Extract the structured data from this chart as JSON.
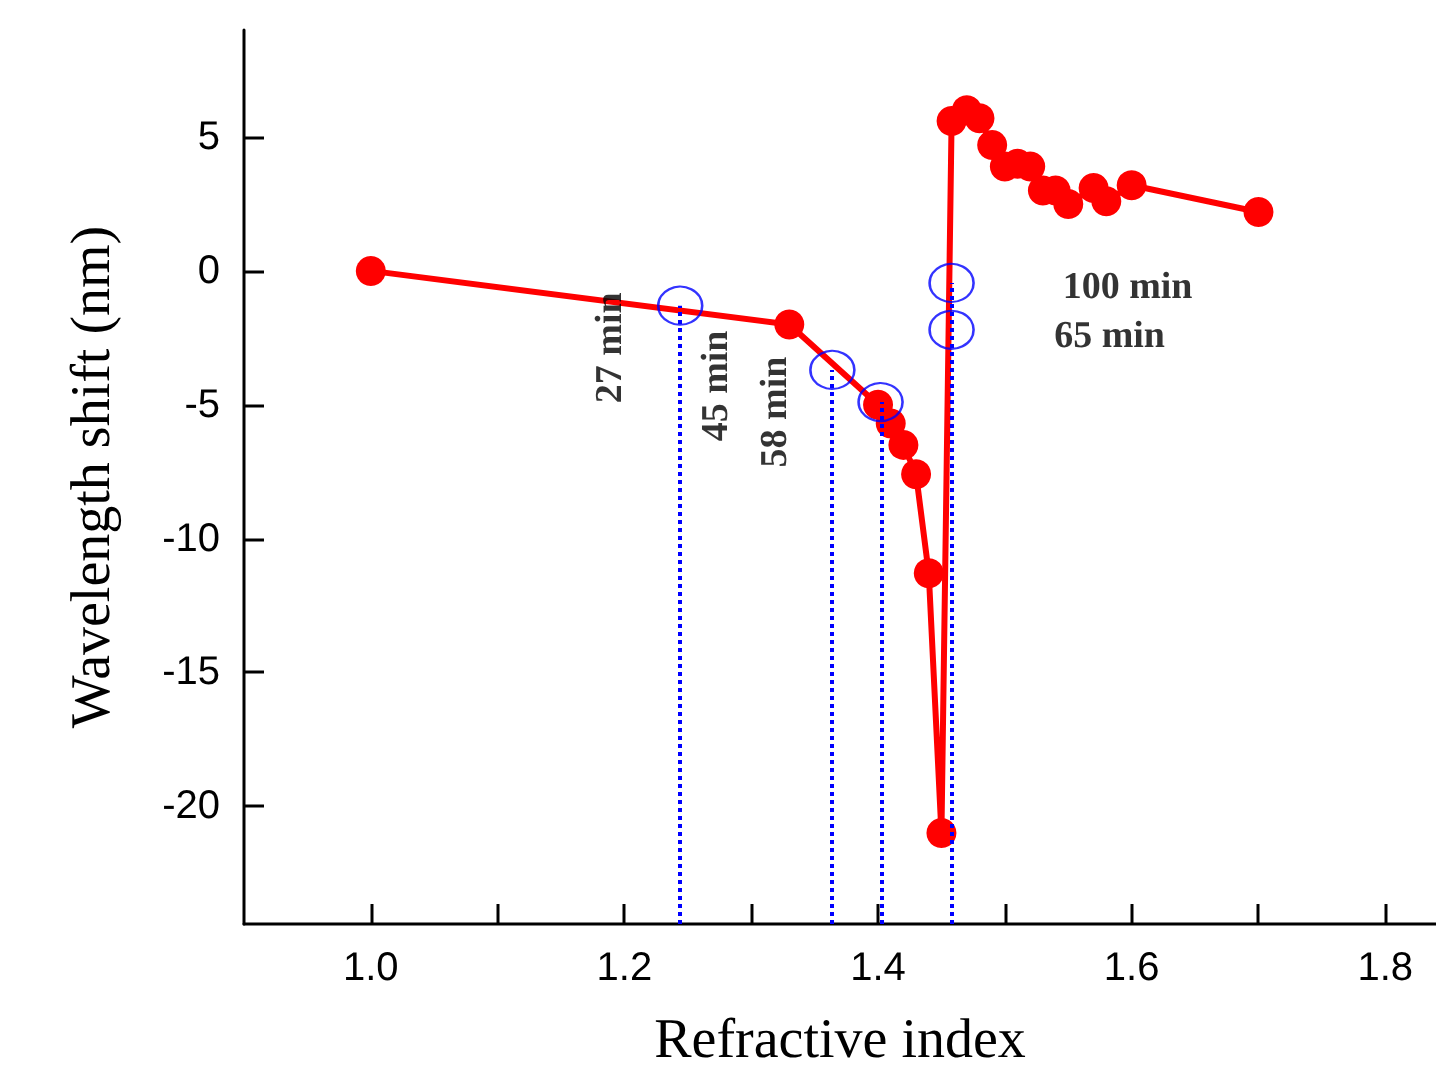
{
  "chart_data": {
    "type": "line",
    "xlabel": "Refractive index",
    "ylabel": "Wavelength shift (nm)",
    "xlim": [
      0.9,
      1.84
    ],
    "ylim": [
      -24.4,
      9
    ],
    "xticks": [
      {
        "value": 1.0,
        "label": "1.0"
      },
      {
        "value": 1.1,
        "label": null
      },
      {
        "value": 1.2,
        "label": "1.2"
      },
      {
        "value": 1.3,
        "label": null
      },
      {
        "value": 1.4,
        "label": "1.4"
      },
      {
        "value": 1.5,
        "label": null
      },
      {
        "value": 1.6,
        "label": "1.6"
      },
      {
        "value": 1.7,
        "label": null
      },
      {
        "value": 1.8,
        "label": "1.8"
      }
    ],
    "yticks": [
      -20,
      -15,
      -10,
      -5,
      0,
      5
    ],
    "marker": "circle",
    "line_style": "solid",
    "series": [
      {
        "color": "#ff0000",
        "x": [
          1.0,
          1.33,
          1.4,
          1.41,
          1.42,
          1.43,
          1.44,
          1.45,
          1.458,
          1.47,
          1.48,
          1.49,
          1.5,
          1.51,
          1.52,
          1.53,
          1.54,
          1.55,
          1.57,
          1.58,
          1.6,
          1.7
        ],
        "values": [
          0,
          -2.0,
          -5.0,
          -5.7,
          -6.5,
          -7.6,
          -11.3,
          -21.0,
          5.6,
          6.0,
          5.7,
          4.7,
          3.9,
          4.0,
          3.9,
          3.0,
          3.0,
          2.5,
          3.1,
          2.6,
          3.2,
          2.2
        ]
      },
      {
        "type": "scatter",
        "color": "#0000ff",
        "x": [
          1.244,
          1.364,
          1.402,
          1.458,
          1.458
        ],
        "values": [
          -1.3,
          -3.7,
          -4.9,
          -0.45,
          -2.2
        ]
      }
    ],
    "ref_lines": [
      {
        "axis": "x",
        "value": 1.244,
        "color": "#0000ff",
        "line_style": "dotted"
      },
      {
        "axis": "x",
        "value": 1.364,
        "color": "#0000ff",
        "line_style": "dotted"
      },
      {
        "axis": "x",
        "value": 1.402,
        "color": "#0000ff",
        "line_style": "dotted"
      },
      {
        "axis": "x",
        "value": 1.458,
        "color": "#0000ff",
        "line_style": "dotted"
      }
    ],
    "annotations": [
      "27 min",
      "45 min",
      "58 min",
      "100 min",
      "65 min"
    ]
  }
}
